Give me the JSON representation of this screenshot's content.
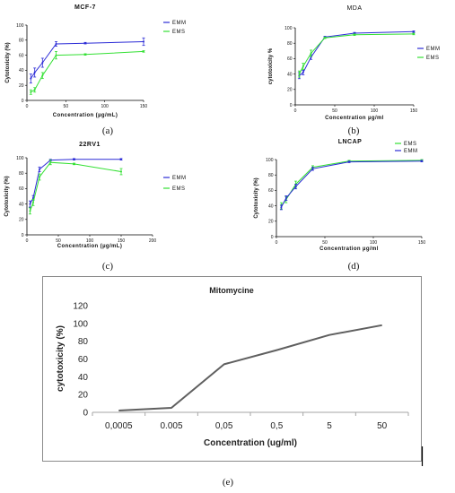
{
  "captions": [
    "(a)",
    "(b)",
    "(c)",
    "(d)",
    "(e)"
  ],
  "colors": {
    "EMM": "#2b2bd6",
    "EMS": "#33e033",
    "mito": "#5f5f5f"
  },
  "chart_data": [
    {
      "type": "line",
      "title": "MCF-7",
      "xlabel": "Concentration (µg/mL)",
      "ylabel": "Cytotoxicity (%)",
      "xlim": [
        0,
        150
      ],
      "ylim": [
        0,
        100
      ],
      "xticks": [
        "0",
        "50",
        "100",
        "150"
      ],
      "yticks": [
        "0",
        "20",
        "40",
        "60",
        "80",
        "100"
      ],
      "series": [
        {
          "name": "EMM",
          "x": [
            5,
            10,
            20,
            37.5,
            75,
            150
          ],
          "y": [
            29,
            37,
            50,
            75,
            76,
            78
          ],
          "err": [
            6,
            6,
            6,
            3,
            1,
            5
          ]
        },
        {
          "name": "EMS",
          "x": [
            5,
            10,
            20,
            37.5,
            75,
            150
          ],
          "y": [
            11,
            14,
            33,
            60,
            61,
            65
          ],
          "err": [
            3,
            3,
            4,
            5,
            1,
            1
          ]
        }
      ]
    },
    {
      "type": "line",
      "title": "MDA",
      "xlabel": "Concentration µg/ml",
      "ylabel": "cytotoxicity %",
      "xlim": [
        0,
        150
      ],
      "ylim": [
        0,
        100
      ],
      "xticks": [
        "0",
        "50",
        "100",
        "150"
      ],
      "yticks": [
        "0",
        "20",
        "40",
        "60",
        "80",
        "100"
      ],
      "series": [
        {
          "name": "EMM",
          "x": [
            5,
            10,
            20,
            37.5,
            75,
            150
          ],
          "y": [
            38,
            42,
            62,
            88,
            93,
            95
          ],
          "err": [
            4,
            3,
            3,
            1,
            1,
            1
          ]
        },
        {
          "name": "EMS",
          "x": [
            5,
            10,
            20,
            37.5,
            75,
            150
          ],
          "y": [
            40,
            50,
            67,
            87,
            91,
            92
          ],
          "err": [
            4,
            4,
            4,
            1,
            1,
            1
          ]
        }
      ]
    },
    {
      "type": "line",
      "title": "22RV1",
      "xlabel": "Concentration (µg/mL)",
      "ylabel": "Cytotoxicity (%)",
      "xlim": [
        0,
        200
      ],
      "ylim": [
        0,
        100
      ],
      "xticks": [
        "0",
        "50",
        "100",
        "150",
        "200"
      ],
      "yticks": [
        "0",
        "20",
        "40",
        "60",
        "80",
        "100"
      ],
      "series": [
        {
          "name": "EMM",
          "x": [
            5,
            10,
            20,
            37.5,
            75,
            150
          ],
          "y": [
            40,
            48,
            85,
            97,
            98,
            98
          ],
          "err": [
            4,
            3,
            3,
            1,
            1,
            1
          ]
        },
        {
          "name": "EMS",
          "x": [
            5,
            10,
            20,
            37.5,
            75,
            150
          ],
          "y": [
            31,
            42,
            75,
            94,
            92,
            82
          ],
          "err": [
            4,
            4,
            4,
            3,
            1,
            4
          ]
        }
      ]
    },
    {
      "type": "line",
      "title": "LNCAP",
      "xlabel": "Concentration µg/ml",
      "ylabel": "Cytotoxicity (%)",
      "xlim": [
        0,
        150
      ],
      "ylim": [
        0,
        100
      ],
      "xticks": [
        "0",
        "50",
        "100",
        "150"
      ],
      "yticks": [
        "0",
        "20",
        "40",
        "60",
        "80",
        "100"
      ],
      "series": [
        {
          "name": "EMS",
          "x": [
            5,
            10,
            20,
            37.5,
            75,
            150
          ],
          "y": [
            40,
            48,
            68,
            90,
            98,
            99
          ],
          "err": [
            4,
            4,
            4,
            2,
            1,
            1
          ]
        },
        {
          "name": "EMM",
          "x": [
            5,
            10,
            20,
            37.5,
            75,
            150
          ],
          "y": [
            38,
            50,
            65,
            88,
            97,
            98
          ],
          "err": [
            3,
            3,
            3,
            2,
            1,
            1
          ]
        }
      ]
    },
    {
      "type": "line",
      "title": "Mitomycine",
      "xlabel": "Concentration (ug/ml)",
      "ylabel": "cytotoxicity (%)",
      "ylim": [
        0,
        120
      ],
      "yticks": [
        "0",
        "20",
        "40",
        "60",
        "80",
        "100",
        "120"
      ],
      "categories": [
        "0,0005",
        "0.005",
        "0,05",
        "0,5",
        "5",
        "50"
      ],
      "series": [
        {
          "values": [
            2,
            5,
            54,
            70,
            87,
            98
          ]
        }
      ]
    }
  ]
}
